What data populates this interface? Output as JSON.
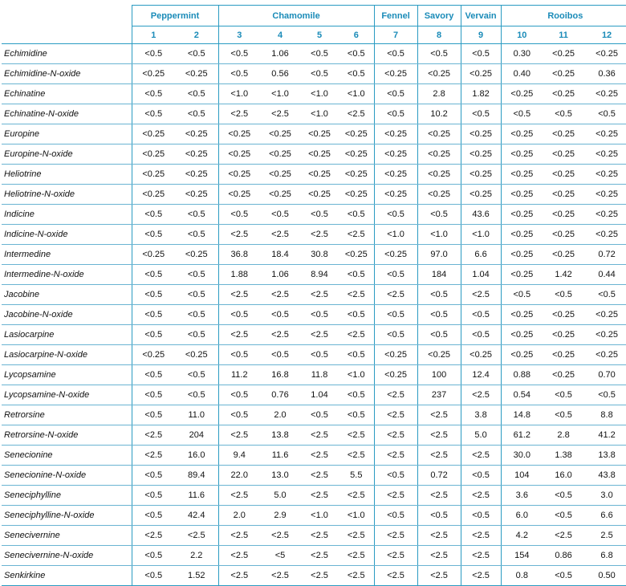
{
  "groups": [
    {
      "label": "Peppermint",
      "span": 2
    },
    {
      "label": "Chamomile",
      "span": 4
    },
    {
      "label": "Fennel",
      "span": 1
    },
    {
      "label": "Savory",
      "span": 1
    },
    {
      "label": "Vervain",
      "span": 1
    },
    {
      "label": "Rooibos",
      "span": 3
    }
  ],
  "sample_numbers": [
    "1",
    "2",
    "3",
    "4",
    "5",
    "6",
    "7",
    "8",
    "9",
    "10",
    "11",
    "12"
  ],
  "rows": [
    {
      "name": "Echimidine",
      "values": [
        "<0.5",
        "<0.5",
        "<0.5",
        "1.06",
        "<0.5",
        "<0.5",
        "<0.5",
        "<0.5",
        "<0.5",
        "0.30",
        "<0.25",
        "<0.25"
      ]
    },
    {
      "name": "Echimidine-N-oxide",
      "values": [
        "<0.25",
        "<0.25",
        "<0.5",
        "0.56",
        "<0.5",
        "<0.5",
        "<0.25",
        "<0.25",
        "<0.25",
        "0.40",
        "<0.25",
        "0.36"
      ]
    },
    {
      "name": "Echinatine",
      "values": [
        "<0.5",
        "<0.5",
        "<1.0",
        "<1.0",
        "<1.0",
        "<1.0",
        "<0.5",
        "2.8",
        "1.82",
        "<0.25",
        "<0.25",
        "<0.25"
      ]
    },
    {
      "name": "Echinatine-N-oxide",
      "values": [
        "<0.5",
        "<0.5",
        "<2.5",
        "<2.5",
        "<1.0",
        "<2.5",
        "<0.5",
        "10.2",
        "<0.5",
        "<0.5",
        "<0.5",
        "<0.5"
      ]
    },
    {
      "name": "Europine",
      "values": [
        "<0.25",
        "<0.25",
        "<0.25",
        "<0.25",
        "<0.25",
        "<0.25",
        "<0.25",
        "<0.25",
        "<0.25",
        "<0.25",
        "<0.25",
        "<0.25"
      ]
    },
    {
      "name": "Europine-N-oxide",
      "values": [
        "<0.25",
        "<0.25",
        "<0.25",
        "<0.25",
        "<0.25",
        "<0.25",
        "<0.25",
        "<0.25",
        "<0.25",
        "<0.25",
        "<0.25",
        "<0.25"
      ]
    },
    {
      "name": "Heliotrine",
      "values": [
        "<0.25",
        "<0.25",
        "<0.25",
        "<0.25",
        "<0.25",
        "<0.25",
        "<0.25",
        "<0.25",
        "<0.25",
        "<0.25",
        "<0.25",
        "<0.25"
      ]
    },
    {
      "name": "Heliotrine-N-oxide",
      "values": [
        "<0.25",
        "<0.25",
        "<0.25",
        "<0.25",
        "<0.25",
        "<0.25",
        "<0.25",
        "<0.25",
        "<0.25",
        "<0.25",
        "<0.25",
        "<0.25"
      ]
    },
    {
      "name": "Indicine",
      "values": [
        "<0.5",
        "<0.5",
        "<0.5",
        "<0.5",
        "<0.5",
        "<0.5",
        "<0.5",
        "<0.5",
        "43.6",
        "<0.25",
        "<0.25",
        "<0.25"
      ]
    },
    {
      "name": "Indicine-N-oxide",
      "values": [
        "<0.5",
        "<0.5",
        "<2.5",
        "<2.5",
        "<2.5",
        "<2.5",
        "<1.0",
        "<1.0",
        "<1.0",
        "<0.25",
        "<0.25",
        "<0.25"
      ]
    },
    {
      "name": "Intermedine",
      "values": [
        "<0.25",
        "<0.25",
        "36.8",
        "18.4",
        "30.8",
        "<0.25",
        "<0.25",
        "97.0",
        "6.6",
        "<0.25",
        "<0.25",
        "0.72"
      ]
    },
    {
      "name": "Intermedine-N-oxide",
      "values": [
        "<0.5",
        "<0.5",
        "1.88",
        "1.06",
        "8.94",
        "<0.5",
        "<0.5",
        "184",
        "1.04",
        "<0.25",
        "1.42",
        "0.44"
      ]
    },
    {
      "name": "Jacobine",
      "values": [
        "<0.5",
        "<0.5",
        "<2.5",
        "<2.5",
        "<2.5",
        "<2.5",
        "<2.5",
        "<0.5",
        "<2.5",
        "<0.5",
        "<0.5",
        "<0.5"
      ]
    },
    {
      "name": "Jacobine-N-oxide",
      "values": [
        "<0.5",
        "<0.5",
        "<0.5",
        "<0.5",
        "<0.5",
        "<0.5",
        "<0.5",
        "<0.5",
        "<0.5",
        "<0.25",
        "<0.25",
        "<0.25"
      ]
    },
    {
      "name": "Lasiocarpine",
      "values": [
        "<0.5",
        "<0.5",
        "<2.5",
        "<2.5",
        "<2.5",
        "<2.5",
        "<0.5",
        "<0.5",
        "<0.5",
        "<0.25",
        "<0.25",
        "<0.25"
      ]
    },
    {
      "name": "Lasiocarpine-N-oxide",
      "values": [
        "<0.25",
        "<0.25",
        "<0.5",
        "<0.5",
        "<0.5",
        "<0.5",
        "<0.25",
        "<0.25",
        "<0.25",
        "<0.25",
        "<0.25",
        "<0.25"
      ]
    },
    {
      "name": "Lycopsamine",
      "values": [
        "<0.5",
        "<0.5",
        "11.2",
        "16.8",
        "11.8",
        "<1.0",
        "<0.25",
        "100",
        "12.4",
        "0.88",
        "<0.25",
        "0.70"
      ]
    },
    {
      "name": "Lycopsamine-N-oxide",
      "values": [
        "<0.5",
        "<0.5",
        "<0.5",
        "0.76",
        "1.04",
        "<0.5",
        "<2.5",
        "237",
        "<2.5",
        "0.54",
        "<0.5",
        "<0.5"
      ]
    },
    {
      "name": "Retrorsine",
      "values": [
        "<0.5",
        "11.0",
        "<0.5",
        "2.0",
        "<0.5",
        "<0.5",
        "<2.5",
        "<2.5",
        "3.8",
        "14.8",
        "<0.5",
        "8.8"
      ]
    },
    {
      "name": "Retrorsine-N-oxide",
      "values": [
        "<2.5",
        "204",
        "<2.5",
        "13.8",
        "<2.5",
        "<2.5",
        "<2.5",
        "<2.5",
        "5.0",
        "61.2",
        "2.8",
        "41.2"
      ]
    },
    {
      "name": "Senecionine",
      "values": [
        "<2.5",
        "16.0",
        "9.4",
        "11.6",
        "<2.5",
        "<2.5",
        "<2.5",
        "<2.5",
        "<2.5",
        "30.0",
        "1.38",
        "13.8"
      ]
    },
    {
      "name": "Senecionine-N-oxide",
      "values": [
        "<0.5",
        "89.4",
        "22.0",
        "13.0",
        "<2.5",
        "5.5",
        "<0.5",
        "0.72",
        "<0.5",
        "104",
        "16.0",
        "43.8"
      ]
    },
    {
      "name": "Seneciphylline",
      "values": [
        "<0.5",
        "11.6",
        "<2.5",
        "5.0",
        "<2.5",
        "<2.5",
        "<2.5",
        "<2.5",
        "<2.5",
        "3.6",
        "<0.5",
        "3.0"
      ]
    },
    {
      "name": "Seneciphylline-N-oxide",
      "values": [
        "<0.5",
        "42.4",
        "2.0",
        "2.9",
        "<1.0",
        "<1.0",
        "<0.5",
        "<0.5",
        "<0.5",
        "6.0",
        "<0.5",
        "6.6"
      ]
    },
    {
      "name": "Senecivernine",
      "values": [
        "<2.5",
        "<2.5",
        "<2.5",
        "<2.5",
        "<2.5",
        "<2.5",
        "<2.5",
        "<2.5",
        "<2.5",
        "4.2",
        "<2.5",
        "2.5"
      ]
    },
    {
      "name": "Senecivernine-N-oxide",
      "values": [
        "<0.5",
        "2.2",
        "<2.5",
        "<5",
        "<2.5",
        "<2.5",
        "<2.5",
        "<2.5",
        "<2.5",
        "154",
        "0.86",
        "6.8"
      ]
    },
    {
      "name": "Senkirkine",
      "values": [
        "<0.5",
        "1.52",
        "<2.5",
        "<2.5",
        "<2.5",
        "<2.5",
        "<2.5",
        "<2.5",
        "<2.5",
        "0.8",
        "<0.5",
        "0.50"
      ]
    }
  ]
}
